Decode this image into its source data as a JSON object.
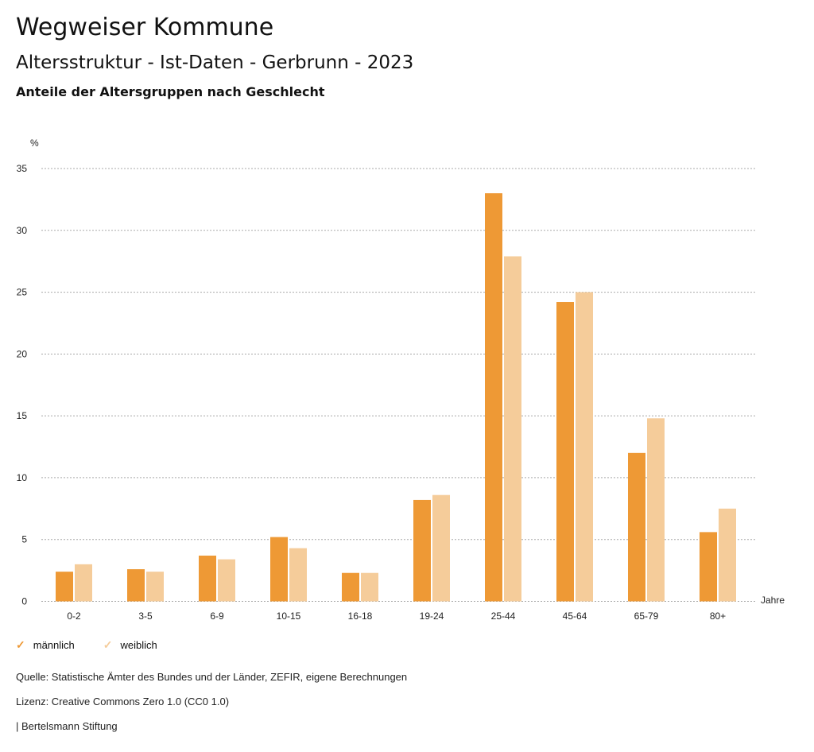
{
  "header": {
    "title": "Wegweiser Kommune",
    "subtitle": "Altersstruktur - Ist-Daten - Gerbrunn - 2023",
    "chart_title": "Anteile der Altersgruppen nach Geschlecht"
  },
  "chart_data": {
    "type": "bar",
    "title": "Anteile der Altersgruppen nach Geschlecht",
    "ylabel": "%",
    "xlabel": "Jahre",
    "ylim": [
      0,
      35
    ],
    "yticks": [
      "0",
      "5",
      "10",
      "15",
      "20",
      "25",
      "30",
      "35"
    ],
    "grid": true,
    "legend_placement": "bottom-left",
    "categories": [
      "0-2",
      "3-5",
      "6-9",
      "10-15",
      "16-18",
      "19-24",
      "25-44",
      "45-64",
      "65-79",
      "80+"
    ],
    "series": [
      {
        "name": "männlich",
        "color": "#ee9935",
        "values": [
          2.4,
          2.6,
          3.7,
          5.2,
          2.3,
          8.2,
          33.0,
          24.2,
          12.0,
          5.6
        ]
      },
      {
        "name": "weiblich",
        "color": "#f5cc9a",
        "values": [
          3.0,
          2.4,
          3.4,
          4.3,
          2.3,
          8.6,
          27.9,
          25.0,
          14.8,
          7.5
        ]
      }
    ]
  },
  "footer": {
    "source": "Quelle: Statistische Ämter des Bundes und der Länder, ZEFIR, eigene Berechnungen",
    "license": "Lizenz: Creative Commons Zero 1.0 (CC0 1.0)",
    "brand": "| Bertelsmann Stiftung"
  },
  "legend_check": "✓"
}
